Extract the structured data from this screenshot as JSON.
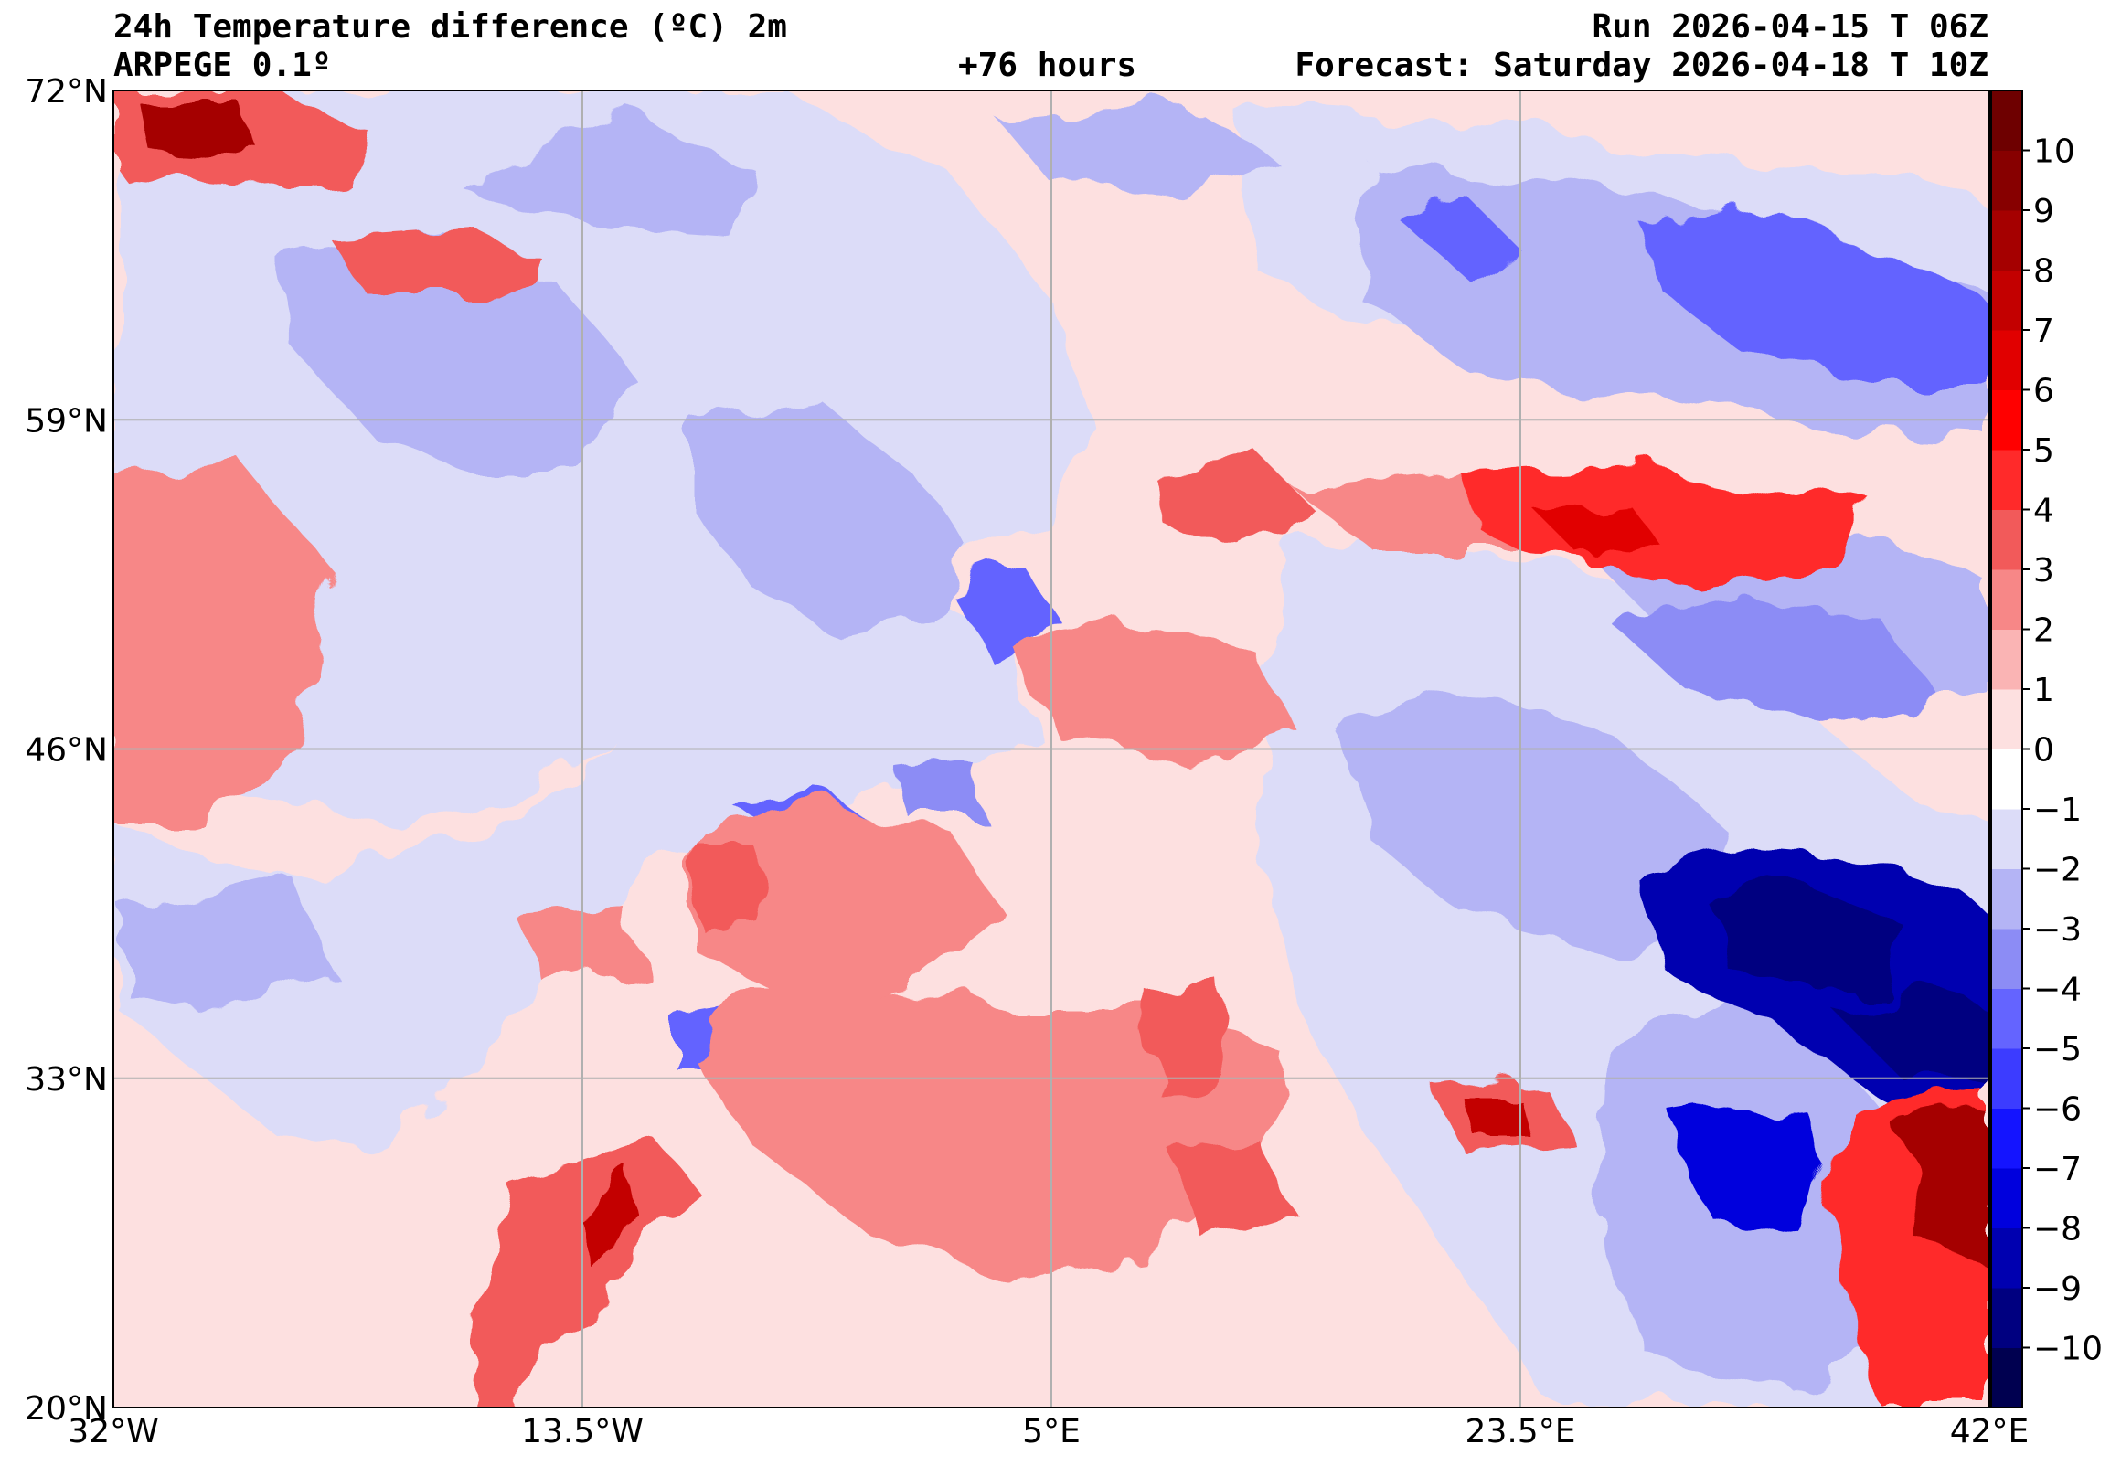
{
  "header": {
    "title": "24h Temperature difference (ºC) 2m",
    "model": "ARPEGE 0.1º",
    "lead": "+76 hours",
    "run": "Run 2026-04-15 T 06Z",
    "forecast": "Forecast: Saturday 2026-04-18 T 10Z"
  },
  "map": {
    "lon_range": [
      -32,
      42
    ],
    "lat_range": [
      20,
      72
    ],
    "lon_ticks": [
      {
        "value": -32,
        "label": "32°W"
      },
      {
        "value": -13.5,
        "label": "13.5°W"
      },
      {
        "value": 5,
        "label": "5°E"
      },
      {
        "value": 23.5,
        "label": "23.5°E"
      },
      {
        "value": 42,
        "label": "42°E"
      }
    ],
    "lat_ticks": [
      {
        "value": 72,
        "label": "72°N"
      },
      {
        "value": 59,
        "label": "59°N"
      },
      {
        "value": 46,
        "label": "46°N"
      },
      {
        "value": 33,
        "label": "33°N"
      },
      {
        "value": 20,
        "label": "20°N"
      }
    ],
    "grid": true
  },
  "colorbar": {
    "levels": [
      "−10",
      "−9",
      "−8",
      "−7",
      "−6",
      "−5",
      "−4",
      "−3",
      "−2",
      "−1",
      "0",
      "1",
      "2",
      "3",
      "4",
      "5",
      "6",
      "7",
      "8",
      "9",
      "10"
    ],
    "colors": [
      "#000050",
      "#000080",
      "#0000b0",
      "#0000dd",
      "#1414ff",
      "#3c3cff",
      "#6464ff",
      "#8c8cf5",
      "#b4b4f5",
      "#dcdcf8",
      "#fde0e0",
      "#fab4b4",
      "#f78787",
      "#f25a5a",
      "#ff2a2a",
      "#ff0000",
      "#e10000",
      "#c30000",
      "#a50000",
      "#870000",
      "#6e0000"
    ],
    "zero_color": "#ffffff"
  }
}
